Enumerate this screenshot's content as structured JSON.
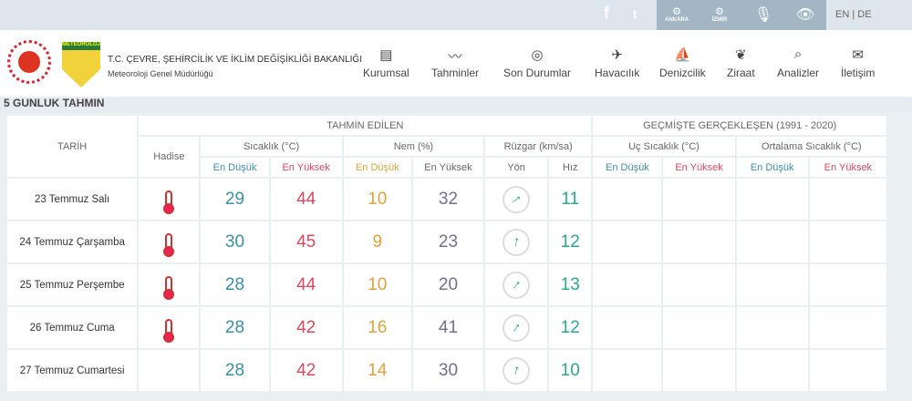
{
  "topbar": {
    "social": [
      "f",
      "t"
    ],
    "stations": [
      {
        "label": "ANKARA"
      },
      {
        "label": "İZMİR"
      }
    ],
    "lang": "EN  |  DE"
  },
  "header": {
    "org_title": "T.C. ÇEVRE, ŞEHİRCİLİK VE İKLİM DEĞİŞİKLİĞİ BAKANLIĞI",
    "org_sub": "Meteoroloji Genel Müdürlüğü",
    "logo_text": "METEOROLOJİ",
    "nav": [
      {
        "label": "Kurumsal",
        "icon": "▤"
      },
      {
        "label": "Tahminler",
        "icon": "〰"
      },
      {
        "label": "Son Durumlar",
        "icon": "◎"
      },
      {
        "label": "Havacılık",
        "icon": "✈"
      },
      {
        "label": "Denizcilik",
        "icon": "⛵"
      },
      {
        "label": "Ziraat",
        "icon": "❦"
      },
      {
        "label": "Analizler",
        "icon": "⌕"
      },
      {
        "label": "İletişim",
        "icon": "✉"
      }
    ]
  },
  "section_title": "5 GUNLUK TAHMIN",
  "table": {
    "tarih": "TARİH",
    "tahmin": "TAHMİN EDİLEN",
    "gecmis": "GEÇMİŞTE GERÇEKLEŞEN (1991 - 2020)",
    "hadise": "Hadise",
    "sicaklik": "Sıcaklık (°C)",
    "nem": "Nem (%)",
    "ruzgar": "Rüzgar (km/sa)",
    "uc": "Uç Sıcaklık (°C)",
    "ortalama": "Ortalama Sıcaklık (°C)",
    "min": "En Düşük",
    "max": "En Yüksek",
    "yon": "Yön",
    "hiz": "Hız",
    "rows": [
      {
        "date": "23 Temmuz Salı",
        "hadise": true,
        "tmin": "29",
        "tmax": "44",
        "hmin": "10",
        "hmax": "32",
        "wind_deg": 55,
        "speed": "11"
      },
      {
        "date": "24 Temmuz Çarşamba",
        "hadise": true,
        "tmin": "30",
        "tmax": "45",
        "hmin": "9",
        "hmax": "23",
        "wind_deg": 10,
        "speed": "12"
      },
      {
        "date": "25 Temmuz Perşembe",
        "hadise": true,
        "tmin": "28",
        "tmax": "44",
        "hmin": "10",
        "hmax": "20",
        "wind_deg": 40,
        "speed": "13"
      },
      {
        "date": "26 Temmuz Cuma",
        "hadise": true,
        "tmin": "28",
        "tmax": "42",
        "hmin": "16",
        "hmax": "41",
        "wind_deg": 35,
        "speed": "12"
      },
      {
        "date": "27 Temmuz Cumartesi",
        "hadise": false,
        "tmin": "28",
        "tmax": "42",
        "hmin": "14",
        "hmax": "30",
        "wind_deg": 15,
        "speed": "10"
      }
    ]
  },
  "colors": {
    "blue": "#3b8ea8",
    "red": "#d9485e",
    "orange": "#dca33a",
    "teal": "#2aa88a"
  }
}
